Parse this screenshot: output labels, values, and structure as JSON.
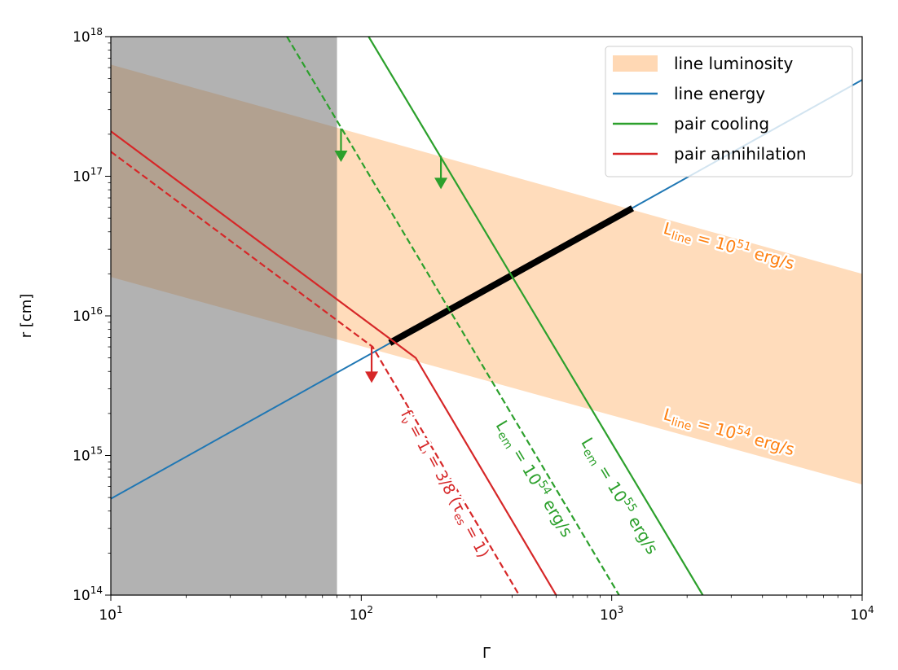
{
  "chart_data": {
    "type": "line",
    "xlabel": "Γ",
    "ylabel": "r [cm]",
    "xscale": "log",
    "yscale": "log",
    "xlim": [
      10,
      10000
    ],
    "ylim": [
      100000000000000.0,
      1e+18
    ],
    "x_ticks": [
      {
        "base": "10",
        "exp": "1",
        "v": 10
      },
      {
        "base": "10",
        "exp": "2",
        "v": 100
      },
      {
        "base": "10",
        "exp": "3",
        "v": 1000
      },
      {
        "base": "10",
        "exp": "4",
        "v": 10000
      }
    ],
    "y_ticks": [
      {
        "base": "10",
        "exp": "14",
        "v": 100000000000000.0
      },
      {
        "base": "10",
        "exp": "15",
        "v": 1000000000000000.0
      },
      {
        "base": "10",
        "exp": "16",
        "v": 1e+16
      },
      {
        "base": "10",
        "exp": "17",
        "v": 1e+17
      },
      {
        "base": "10",
        "exp": "18",
        "v": 1e+18
      }
    ],
    "grid": false,
    "legend_position": "top-right",
    "legend": [
      {
        "label": "line luminosity",
        "kind": "patch",
        "color": "#ffd8b4"
      },
      {
        "label": "line energy",
        "kind": "line",
        "color": "#1f77b4"
      },
      {
        "label": "pair cooling",
        "kind": "line",
        "color": "#2ca02c"
      },
      {
        "label": "pair annihilation",
        "kind": "line",
        "color": "#d62728"
      }
    ],
    "excluded_region": {
      "x_range": [
        10,
        80
      ],
      "color": "#b3b3b3"
    },
    "line_luminosity_band": {
      "color": "#ffd8b4",
      "upper": [
        [
          10,
          6.3e+17
        ],
        [
          10000,
          2e+16
        ]
      ],
      "lower": [
        [
          10,
          1.9e+16
        ],
        [
          10000,
          620000000000000.0
        ]
      ]
    },
    "series": [
      {
        "name": "line energy",
        "color": "#1f77b4",
        "style": "solid",
        "width": 2,
        "points": [
          [
            10,
            490000000000000.0
          ],
          [
            10000,
            4.9e+17
          ]
        ]
      },
      {
        "name": "allowed range",
        "color": "#000000",
        "style": "solid",
        "width": 8,
        "points": [
          [
            130,
            6400000000000000.0
          ],
          [
            1210,
            5.9e+16
          ]
        ]
      },
      {
        "name": "pair cooling L_em=10^55",
        "color": "#2ca02c",
        "style": "solid",
        "width": 2.2,
        "points": [
          [
            107,
            1e+18
          ],
          [
            2310,
            100000000000000.0
          ]
        ]
      },
      {
        "name": "pair cooling L_em=10^54",
        "color": "#2ca02c",
        "style": "dashed",
        "width": 2.2,
        "points": [
          [
            50.5,
            1e+18
          ],
          [
            1070,
            100000000000000.0
          ]
        ]
      },
      {
        "name": "pair annihilation f=3/8",
        "color": "#d62728",
        "style": "solid",
        "width": 2.2,
        "points": [
          [
            10,
            2.1e+17
          ],
          [
            165,
            5000000000000000.0
          ],
          [
            600,
            100000000000000.0
          ]
        ]
      },
      {
        "name": "pair annihilation f=1",
        "color": "#d62728",
        "style": "dashed",
        "width": 2.2,
        "points": [
          [
            10,
            1.5e+17
          ],
          [
            111,
            6000000000000000.0
          ],
          [
            427,
            100000000000000.0
          ]
        ]
      }
    ],
    "arrows": [
      {
        "color": "#2ca02c",
        "x": 83,
        "from": 2.2e+17,
        "to": 1.3e+17
      },
      {
        "color": "#2ca02c",
        "x": 208,
        "from": 1.4e+17,
        "to": 8.3e+16
      },
      {
        "color": "#d62728",
        "x": 110,
        "from": 6000000000000000.0,
        "to": 3400000000000000.0
      }
    ],
    "annotations": [
      {
        "color": "#ff7f0e",
        "x": 2900,
        "y": 2.9e+16,
        "angle": 15.6,
        "main": "L",
        "sub": "line",
        "mid": " = 10",
        "sup": "51",
        "end": " erg/s",
        "size": 20
      },
      {
        "color": "#ff7f0e",
        "x": 2900,
        "y": 1350000000000000.0,
        "angle": 15.6,
        "main": "L",
        "sub": "line",
        "mid": " = 10",
        "sup": "54",
        "end": " erg/s",
        "size": 20
      },
      {
        "color": "#2ca02c",
        "x": 470,
        "y": 650000000000000.0,
        "angle": 59,
        "main": "L",
        "sub": "em",
        "mid": " = 10",
        "sup": "54",
        "end": " erg/s",
        "size": 20
      },
      {
        "color": "#2ca02c",
        "x": 1030,
        "y": 490000000000000.0,
        "angle": 59,
        "main": "L",
        "sub": "em",
        "mid": " = 10",
        "sup": "55",
        "end": " erg/s",
        "size": 20
      },
      {
        "color": "#d62728",
        "x": 225,
        "y": 470000000000000.0,
        "angle": 62,
        "main": "f",
        "sub": "ν",
        "mid": " = 3/8 (τ",
        "sup": "",
        "sub2": "es",
        "end": " = 1)",
        "size": 19
      },
      {
        "color": "#d62728",
        "x": 158,
        "y": 1450000000000000.0,
        "angle": 62,
        "main": "f",
        "sub": "ν",
        "mid": " = 1",
        "sup": "",
        "end": "",
        "size": 19
      }
    ]
  }
}
